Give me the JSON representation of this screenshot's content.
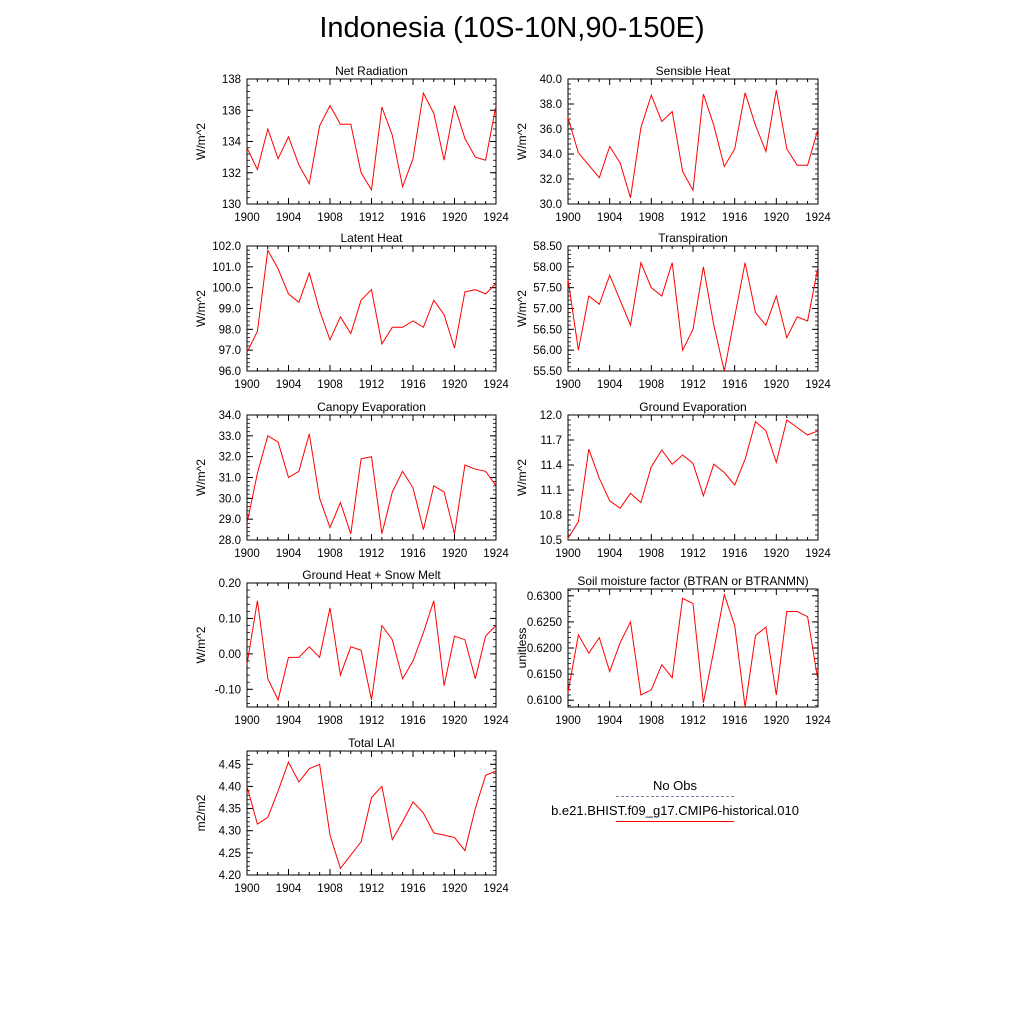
{
  "title": "Indonesia (10S-10N,90-150E)",
  "colors": {
    "sim": "#ff0000",
    "obs": "#7f7fa0"
  },
  "legend": [
    {
      "label": "No Obs",
      "color": "#7f7fa0",
      "style": "dashed"
    },
    {
      "label": "b.e21.BHIST.f09_g17.CMIP6-historical.010",
      "color": "#ff0000",
      "style": "solid"
    }
  ],
  "chart_data": [
    {
      "type": "line",
      "title": "Net Radiation",
      "ylabel": "W/m^2",
      "xlim": [
        1900,
        1924
      ],
      "ylim": [
        130,
        138
      ],
      "xticks": [
        "1900",
        "1904",
        "1908",
        "1912",
        "1916",
        "1920",
        "1924"
      ],
      "yticks": [
        "130",
        "132",
        "134",
        "136",
        "138"
      ],
      "x": [
        1900,
        1901,
        1902,
        1903,
        1904,
        1905,
        1906,
        1907,
        1908,
        1909,
        1910,
        1911,
        1912,
        1913,
        1914,
        1915,
        1916,
        1917,
        1918,
        1919,
        1920,
        1921,
        1922,
        1923,
        1924
      ],
      "series": [
        {
          "values": [
            133.6,
            132.2,
            134.8,
            132.9,
            134.3,
            132.5,
            131.3,
            135.0,
            136.3,
            135.1,
            135.1,
            132.0,
            130.9,
            136.2,
            134.4,
            131.1,
            132.9,
            137.1,
            135.8,
            132.8,
            136.3,
            134.2,
            133.0,
            132.8,
            136.3
          ]
        }
      ]
    },
    {
      "type": "line",
      "title": "Sensible Heat",
      "ylabel": "W/m^2",
      "xlim": [
        1900,
        1924
      ],
      "ylim": [
        30,
        40
      ],
      "xticks": [
        "1900",
        "1904",
        "1908",
        "1912",
        "1916",
        "1920",
        "1924"
      ],
      "yticks": [
        "30.0",
        "32.0",
        "34.0",
        "36.0",
        "38.0",
        "40.0"
      ],
      "x": [
        1900,
        1901,
        1902,
        1903,
        1904,
        1905,
        1906,
        1907,
        1908,
        1909,
        1910,
        1911,
        1912,
        1913,
        1914,
        1915,
        1916,
        1917,
        1918,
        1919,
        1920,
        1921,
        1922,
        1923,
        1924
      ],
      "series": [
        {
          "values": [
            36.9,
            34.1,
            33.1,
            32.1,
            34.6,
            33.3,
            30.5,
            36.1,
            38.7,
            36.6,
            37.4,
            32.6,
            31.1,
            38.8,
            36.3,
            33.0,
            34.4,
            38.9,
            36.3,
            34.2,
            39.1,
            34.4,
            33.1,
            33.1,
            36.0
          ]
        }
      ]
    },
    {
      "type": "line",
      "title": "Latent Heat",
      "ylabel": "W/m^2",
      "xlim": [
        1900,
        1924
      ],
      "ylim": [
        96,
        102
      ],
      "xticks": [
        "1900",
        "1904",
        "1908",
        "1912",
        "1916",
        "1920",
        "1924"
      ],
      "yticks": [
        "96.0",
        "97.0",
        "98.0",
        "99.0",
        "100.0",
        "101.0",
        "102.0"
      ],
      "x": [
        1900,
        1901,
        1902,
        1903,
        1904,
        1905,
        1906,
        1907,
        1908,
        1909,
        1910,
        1911,
        1912,
        1913,
        1914,
        1915,
        1916,
        1917,
        1918,
        1919,
        1920,
        1921,
        1922,
        1923,
        1924
      ],
      "series": [
        {
          "values": [
            96.9,
            97.9,
            101.8,
            100.9,
            99.7,
            99.3,
            100.7,
            98.9,
            97.5,
            98.6,
            97.8,
            99.4,
            99.9,
            97.3,
            98.1,
            98.1,
            98.4,
            98.1,
            99.4,
            98.7,
            97.1,
            99.8,
            99.9,
            99.7,
            100.2
          ]
        }
      ]
    },
    {
      "type": "line",
      "title": "Transpiration",
      "ylabel": "W/m^2",
      "xlim": [
        1900,
        1924
      ],
      "ylim": [
        55.5,
        58.5
      ],
      "xticks": [
        "1900",
        "1904",
        "1908",
        "1912",
        "1916",
        "1920",
        "1924"
      ],
      "yticks": [
        "55.50",
        "56.00",
        "56.50",
        "57.00",
        "57.50",
        "58.00",
        "58.50"
      ],
      "x": [
        1900,
        1901,
        1902,
        1903,
        1904,
        1905,
        1906,
        1907,
        1908,
        1909,
        1910,
        1911,
        1912,
        1913,
        1914,
        1915,
        1916,
        1917,
        1918,
        1919,
        1920,
        1921,
        1922,
        1923,
        1924
      ],
      "series": [
        {
          "values": [
            57.7,
            56.0,
            57.3,
            57.1,
            57.8,
            57.2,
            56.6,
            58.1,
            57.5,
            57.3,
            58.1,
            56.0,
            56.5,
            58.0,
            56.6,
            55.5,
            56.8,
            58.1,
            56.9,
            56.6,
            57.3,
            56.3,
            56.8,
            56.7,
            58.0
          ]
        }
      ]
    },
    {
      "type": "line",
      "title": "Canopy Evaporation",
      "ylabel": "W/m^2",
      "xlim": [
        1900,
        1924
      ],
      "ylim": [
        28,
        34
      ],
      "xticks": [
        "1900",
        "1904",
        "1908",
        "1912",
        "1916",
        "1920",
        "1924"
      ],
      "yticks": [
        "28.0",
        "29.0",
        "30.0",
        "31.0",
        "32.0",
        "33.0",
        "34.0"
      ],
      "x": [
        1900,
        1901,
        1902,
        1903,
        1904,
        1905,
        1906,
        1907,
        1908,
        1909,
        1910,
        1911,
        1912,
        1913,
        1914,
        1915,
        1916,
        1917,
        1918,
        1919,
        1920,
        1921,
        1922,
        1923,
        1924
      ],
      "series": [
        {
          "values": [
            28.8,
            31.2,
            33.0,
            32.7,
            31.0,
            31.3,
            33.1,
            30.0,
            28.6,
            29.8,
            28.3,
            31.9,
            32.0,
            28.3,
            30.3,
            31.3,
            30.5,
            28.5,
            30.6,
            30.3,
            28.3,
            31.6,
            31.4,
            31.3,
            30.6
          ]
        }
      ]
    },
    {
      "type": "line",
      "title": "Ground Evaporation",
      "ylabel": "W/m^2",
      "xlim": [
        1900,
        1924
      ],
      "ylim": [
        10.5,
        12.0
      ],
      "xticks": [
        "1900",
        "1904",
        "1908",
        "1912",
        "1916",
        "1920",
        "1924"
      ],
      "yticks": [
        "10.5",
        "10.8",
        "11.1",
        "11.4",
        "11.7",
        "12.0"
      ],
      "x": [
        1900,
        1901,
        1902,
        1903,
        1904,
        1905,
        1906,
        1907,
        1908,
        1909,
        1910,
        1911,
        1912,
        1913,
        1914,
        1915,
        1916,
        1917,
        1918,
        1919,
        1920,
        1921,
        1922,
        1923,
        1924
      ],
      "series": [
        {
          "values": [
            10.52,
            10.72,
            11.59,
            11.24,
            10.97,
            10.88,
            11.06,
            10.95,
            11.38,
            11.58,
            11.41,
            11.52,
            11.42,
            11.03,
            11.41,
            11.31,
            11.16,
            11.47,
            11.92,
            11.81,
            11.43,
            11.94,
            11.85,
            11.76,
            11.81
          ]
        }
      ]
    },
    {
      "type": "line",
      "title": "Ground Heat + Snow Melt",
      "ylabel": "W/m^2",
      "xlim": [
        1900,
        1924
      ],
      "ylim": [
        -0.15,
        0.2
      ],
      "xticks": [
        "1900",
        "1904",
        "1908",
        "1912",
        "1916",
        "1920",
        "1924"
      ],
      "yticks": [
        "-0.10",
        "0.00",
        "0.10",
        "0.20"
      ],
      "ytick_values": [
        -0.1,
        0.0,
        0.1,
        0.2
      ],
      "x": [
        1900,
        1901,
        1902,
        1903,
        1904,
        1905,
        1906,
        1907,
        1908,
        1909,
        1910,
        1911,
        1912,
        1913,
        1914,
        1915,
        1916,
        1917,
        1918,
        1919,
        1920,
        1921,
        1922,
        1923,
        1924
      ],
      "series": [
        {
          "values": [
            -0.03,
            0.15,
            -0.07,
            -0.13,
            -0.01,
            -0.01,
            0.02,
            -0.01,
            0.13,
            -0.06,
            0.02,
            0.01,
            -0.13,
            0.08,
            0.04,
            -0.07,
            -0.02,
            0.06,
            0.15,
            -0.09,
            0.05,
            0.04,
            -0.07,
            0.05,
            0.08
          ]
        }
      ]
    },
    {
      "type": "line",
      "title": "Soil moisture factor (BTRAN or BTRANMN)",
      "ylabel": "unitless",
      "xlim": [
        1900,
        1924
      ],
      "ylim": [
        0.6087,
        0.6313
      ],
      "xticks": [
        "1900",
        "1904",
        "1908",
        "1912",
        "1916",
        "1920",
        "1924"
      ],
      "yticks": [
        "0.6100",
        "0.6150",
        "0.6200",
        "0.6250",
        "0.6300"
      ],
      "ytick_values": [
        0.61,
        0.615,
        0.62,
        0.625,
        0.63
      ],
      "x": [
        1900,
        1901,
        1902,
        1903,
        1904,
        1905,
        1906,
        1907,
        1908,
        1909,
        1910,
        1911,
        1912,
        1913,
        1914,
        1915,
        1916,
        1917,
        1918,
        1919,
        1920,
        1921,
        1922,
        1923,
        1924
      ],
      "series": [
        {
          "values": [
            0.6115,
            0.6225,
            0.619,
            0.622,
            0.6155,
            0.621,
            0.625,
            0.611,
            0.612,
            0.6168,
            0.6143,
            0.6295,
            0.6285,
            0.6095,
            0.6195,
            0.6302,
            0.6243,
            0.6087,
            0.6224,
            0.624,
            0.611,
            0.627,
            0.627,
            0.626,
            0.6137
          ]
        }
      ]
    },
    {
      "type": "line",
      "title": "Total LAI",
      "ylabel": "m2/m2",
      "xlim": [
        1900,
        1924
      ],
      "ylim": [
        4.2,
        4.48
      ],
      "xticks": [
        "1900",
        "1904",
        "1908",
        "1912",
        "1916",
        "1920",
        "1924"
      ],
      "yticks": [
        "4.20",
        "4.25",
        "4.30",
        "4.35",
        "4.40",
        "4.45"
      ],
      "ytick_values": [
        4.2,
        4.25,
        4.3,
        4.35,
        4.4,
        4.45
      ],
      "x": [
        1900,
        1901,
        1902,
        1903,
        1904,
        1905,
        1906,
        1907,
        1908,
        1909,
        1910,
        1911,
        1912,
        1913,
        1914,
        1915,
        1916,
        1917,
        1918,
        1919,
        1920,
        1921,
        1922,
        1923,
        1924
      ],
      "series": [
        {
          "values": [
            4.4,
            4.315,
            4.33,
            4.39,
            4.455,
            4.41,
            4.44,
            4.45,
            4.29,
            4.215,
            4.245,
            4.275,
            4.375,
            4.4,
            4.28,
            4.32,
            4.365,
            4.34,
            4.295,
            4.29,
            4.285,
            4.255,
            4.35,
            4.425,
            4.435
          ]
        }
      ]
    }
  ]
}
